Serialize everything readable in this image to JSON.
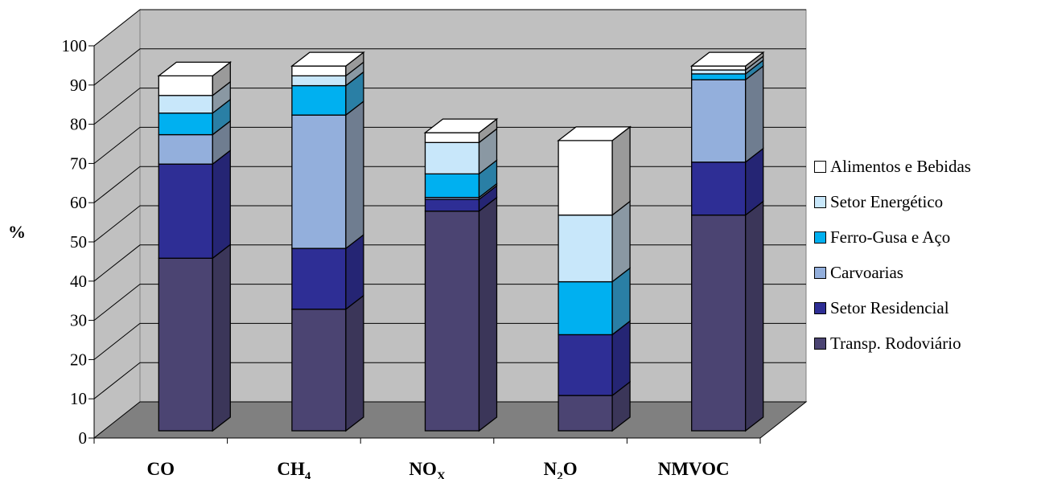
{
  "chart_data": {
    "type": "bar",
    "stacked": true,
    "three_d": true,
    "ylabel": "%",
    "ylim": [
      0,
      100
    ],
    "yticks": [
      0,
      10,
      20,
      30,
      40,
      50,
      60,
      70,
      80,
      90,
      100
    ],
    "grid": true,
    "legend_position": "right",
    "categories": [
      {
        "base": "CO",
        "sub": ""
      },
      {
        "base": "CH",
        "sub": "4"
      },
      {
        "base": "NO",
        "sub": "X"
      },
      {
        "base": "N",
        "sub": "2",
        "tail": "O"
      },
      {
        "base": "NMVOC",
        "sub": ""
      }
    ],
    "series": [
      {
        "name": "Transp. Rodoviário",
        "color": "#4b4472",
        "side": "#3b3659",
        "top": "#5d5588",
        "values": [
          44,
          31,
          56,
          9,
          55
        ]
      },
      {
        "name": "Setor Residencial",
        "color": "#2e2e95",
        "side": "#252574",
        "top": "#3e3ea8",
        "values": [
          24,
          15.5,
          3,
          15.5,
          13.5
        ]
      },
      {
        "name": "Carvoarias",
        "color": "#93afdc",
        "side": "#6f7d90",
        "top": "#a8c0e6",
        "values": [
          7.5,
          34,
          0.5,
          0,
          21
        ]
      },
      {
        "name": "Ferro-Gusa e Aço",
        "color": "#00b0f0",
        "side": "#2a7fa5",
        "top": "#33c0f3",
        "values": [
          5.5,
          7.5,
          6,
          13.5,
          1.5
        ]
      },
      {
        "name": "Setor Energético",
        "color": "#c8e7fa",
        "side": "#8a98a3",
        "top": "#d9effc",
        "values": [
          4.5,
          2.5,
          8,
          17,
          1
        ]
      },
      {
        "name": "Alimentos e Bebidas",
        "color": "#ffffff",
        "side": "#9a9a9a",
        "top": "#ffffff",
        "values": [
          5,
          2.5,
          2.5,
          19,
          1
        ]
      }
    ]
  }
}
